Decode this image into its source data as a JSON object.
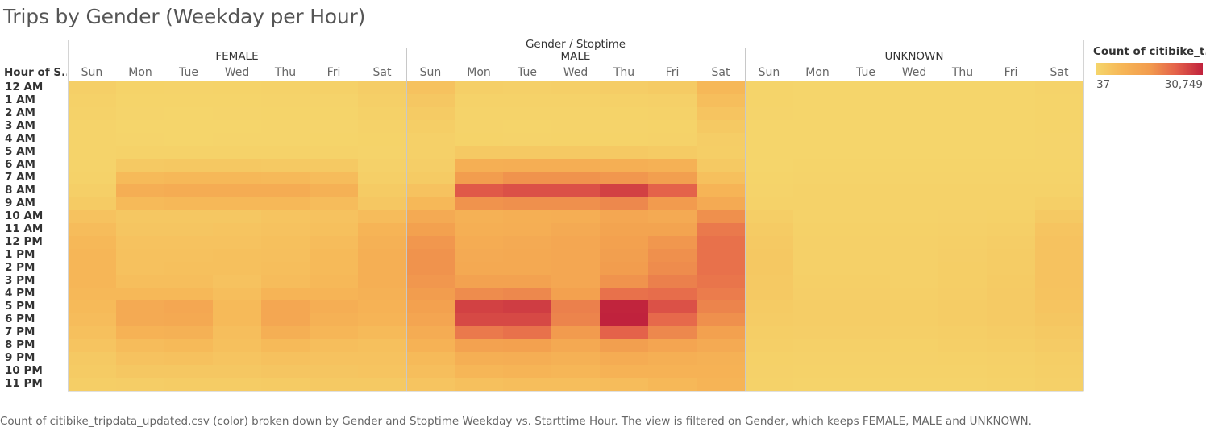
{
  "title": "Trips by Gender (Weekday per Hour)",
  "shelf_title": "Gender / Stoptime",
  "row_header": "Hour of S..",
  "legend": {
    "title": "Count of citibike_t..",
    "min_label": "37",
    "max_label": "30,749",
    "colors": [
      "#f5d56b",
      "#f6b556",
      "#f29c4e",
      "#e4614a",
      "#c0223d"
    ]
  },
  "caption": "Count of citibike_tripdata_updated.csv (color) broken down by Gender and Stoptime Weekday vs. Starttime Hour. The view is filtered on Gender, which keeps FEMALE, MALE and UNKNOWN.",
  "chart_data": {
    "type": "heatmap",
    "title": "Trips by Gender (Weekday per Hour)",
    "column_groups": [
      "FEMALE",
      "MALE",
      "UNKNOWN"
    ],
    "days": [
      "Sun",
      "Mon",
      "Tue",
      "Wed",
      "Thu",
      "Fri",
      "Sat"
    ],
    "hours": [
      "12 AM",
      "1 AM",
      "2 AM",
      "3 AM",
      "4 AM",
      "5 AM",
      "6 AM",
      "7 AM",
      "8 AM",
      "9 AM",
      "10 AM",
      "11 AM",
      "12 PM",
      "1 PM",
      "2 PM",
      "3 PM",
      "4 PM",
      "5 PM",
      "6 PM",
      "7 PM",
      "8 PM",
      "9 PM",
      "10 PM",
      "11 PM"
    ],
    "color_range": [
      37,
      30749
    ],
    "values": {
      "FEMALE": [
        [
          1400,
          600,
          500,
          600,
          800,
          1000,
          2000
        ],
        [
          1000,
          300,
          250,
          300,
          400,
          500,
          1500
        ],
        [
          700,
          200,
          150,
          200,
          250,
          300,
          1100
        ],
        [
          500,
          150,
          100,
          150,
          200,
          200,
          800
        ],
        [
          400,
          200,
          150,
          200,
          200,
          250,
          600
        ],
        [
          400,
          800,
          800,
          800,
          800,
          700,
          500
        ],
        [
          500,
          3000,
          3200,
          3200,
          3000,
          2800,
          900
        ],
        [
          800,
          6500,
          7000,
          7000,
          6800,
          6000,
          1500
        ],
        [
          1500,
          10000,
          10500,
          10500,
          10500,
          9000,
          2500
        ],
        [
          2500,
          6500,
          7000,
          7000,
          7000,
          6000,
          3500
        ],
        [
          4500,
          3500,
          3500,
          3500,
          4000,
          4500,
          6000
        ],
        [
          6000,
          3800,
          3800,
          4000,
          4500,
          5000,
          8000
        ],
        [
          7000,
          4500,
          4500,
          4500,
          5000,
          6000,
          9000
        ],
        [
          7500,
          4800,
          4800,
          5000,
          5200,
          6500,
          9500
        ],
        [
          7500,
          4800,
          5000,
          5000,
          5500,
          6500,
          9500
        ],
        [
          7500,
          5500,
          5500,
          4500,
          6000,
          7000,
          9500
        ],
        [
          7000,
          7000,
          7000,
          5500,
          8000,
          8000,
          9000
        ],
        [
          6500,
          11000,
          12000,
          6500,
          12000,
          10000,
          8500
        ],
        [
          6000,
          11000,
          11500,
          6500,
          12000,
          9000,
          8000
        ],
        [
          5000,
          8500,
          9000,
          5500,
          9500,
          7500,
          6500
        ],
        [
          4000,
          6000,
          6500,
          5000,
          6500,
          5500,
          5000
        ],
        [
          3000,
          4500,
          4800,
          4000,
          4800,
          4500,
          4500
        ],
        [
          2500,
          3500,
          3500,
          3500,
          3800,
          3800,
          4000
        ],
        [
          1800,
          2000,
          2200,
          2200,
          2500,
          2800,
          3000
        ]
      ],
      "MALE": [
        [
          4500,
          1500,
          1300,
          1500,
          2000,
          2500,
          7000
        ],
        [
          3500,
          800,
          700,
          800,
          1000,
          1300,
          5500
        ],
        [
          2500,
          500,
          400,
          500,
          600,
          800,
          4000
        ],
        [
          1800,
          400,
          300,
          400,
          500,
          600,
          3000
        ],
        [
          1300,
          600,
          500,
          600,
          600,
          700,
          2000
        ],
        [
          1300,
          2800,
          2800,
          2800,
          2800,
          2500,
          1800
        ],
        [
          1600,
          9500,
          10000,
          10000,
          9500,
          9000,
          3000
        ],
        [
          2500,
          15000,
          16500,
          16500,
          16000,
          14500,
          5000
        ],
        [
          4500,
          24000,
          25000,
          25000,
          27000,
          23000,
          8000
        ],
        [
          7000,
          16500,
          17000,
          17000,
          18000,
          15500,
          11000
        ],
        [
          11000,
          9000,
          9500,
          10000,
          12000,
          11000,
          17000
        ],
        [
          14000,
          9500,
          10000,
          11000,
          13000,
          13000,
          20000
        ],
        [
          16000,
          10500,
          11000,
          12000,
          14000,
          16000,
          21000
        ],
        [
          16500,
          11000,
          11500,
          12000,
          14500,
          17000,
          21000
        ],
        [
          16500,
          11500,
          11500,
          12000,
          15000,
          17500,
          21000
        ],
        [
          16000,
          13500,
          13500,
          12000,
          16500,
          19000,
          20500
        ],
        [
          15000,
          17500,
          18000,
          14000,
          21000,
          21500,
          19500
        ],
        [
          14000,
          27000,
          27500,
          19000,
          30500,
          25000,
          18500
        ],
        [
          12500,
          26000,
          26000,
          18500,
          30749,
          22000,
          17000
        ],
        [
          10500,
          20000,
          21000,
          15500,
          23000,
          18000,
          14000
        ],
        [
          8500,
          13500,
          14000,
          11500,
          14500,
          12500,
          11000
        ],
        [
          6500,
          9500,
          10000,
          9000,
          10500,
          9500,
          9000
        ],
        [
          5500,
          7500,
          8000,
          7500,
          8500,
          8500,
          8500
        ],
        [
          4000,
          5000,
          5500,
          5500,
          6000,
          7000,
          8000
        ]
      ],
      "UNKNOWN": [
        [
          300,
          100,
          90,
          100,
          120,
          150,
          400
        ],
        [
          250,
          70,
          60,
          70,
          80,
          100,
          350
        ],
        [
          200,
          50,
          40,
          50,
          60,
          70,
          300
        ],
        [
          150,
          40,
          37,
          40,
          50,
          60,
          250
        ],
        [
          120,
          50,
          45,
          50,
          50,
          60,
          200
        ],
        [
          120,
          120,
          120,
          120,
          120,
          120,
          180
        ],
        [
          150,
          300,
          300,
          300,
          300,
          300,
          250
        ],
        [
          250,
          500,
          500,
          500,
          500,
          500,
          400
        ],
        [
          400,
          800,
          800,
          800,
          800,
          800,
          700
        ],
        [
          800,
          700,
          700,
          700,
          700,
          700,
          1500
        ],
        [
          1800,
          800,
          800,
          800,
          900,
          1000,
          3000
        ],
        [
          2500,
          1000,
          1000,
          1000,
          1200,
          1500,
          4000
        ],
        [
          3000,
          1200,
          1200,
          1200,
          1500,
          2000,
          4500
        ],
        [
          3200,
          1300,
          1300,
          1300,
          1600,
          2200,
          4600
        ],
        [
          3200,
          1300,
          1300,
          1300,
          1700,
          2300,
          4600
        ],
        [
          3000,
          1400,
          1400,
          1300,
          1800,
          2500,
          4500
        ],
        [
          2800,
          1600,
          1600,
          1500,
          2000,
          2600,
          4300
        ],
        [
          2500,
          2000,
          2000,
          1700,
          2200,
          2700,
          4000
        ],
        [
          2200,
          2000,
          2000,
          1700,
          2200,
          2600,
          3600
        ],
        [
          1800,
          1600,
          1600,
          1500,
          1800,
          2200,
          3000
        ],
        [
          1400,
          1200,
          1200,
          1100,
          1400,
          1700,
          2400
        ],
        [
          1100,
          900,
          900,
          900,
          1000,
          1300,
          1800
        ],
        [
          900,
          700,
          700,
          700,
          800,
          1100,
          1500
        ],
        [
          700,
          400,
          400,
          400,
          500,
          800,
          1200
        ]
      ]
    }
  }
}
